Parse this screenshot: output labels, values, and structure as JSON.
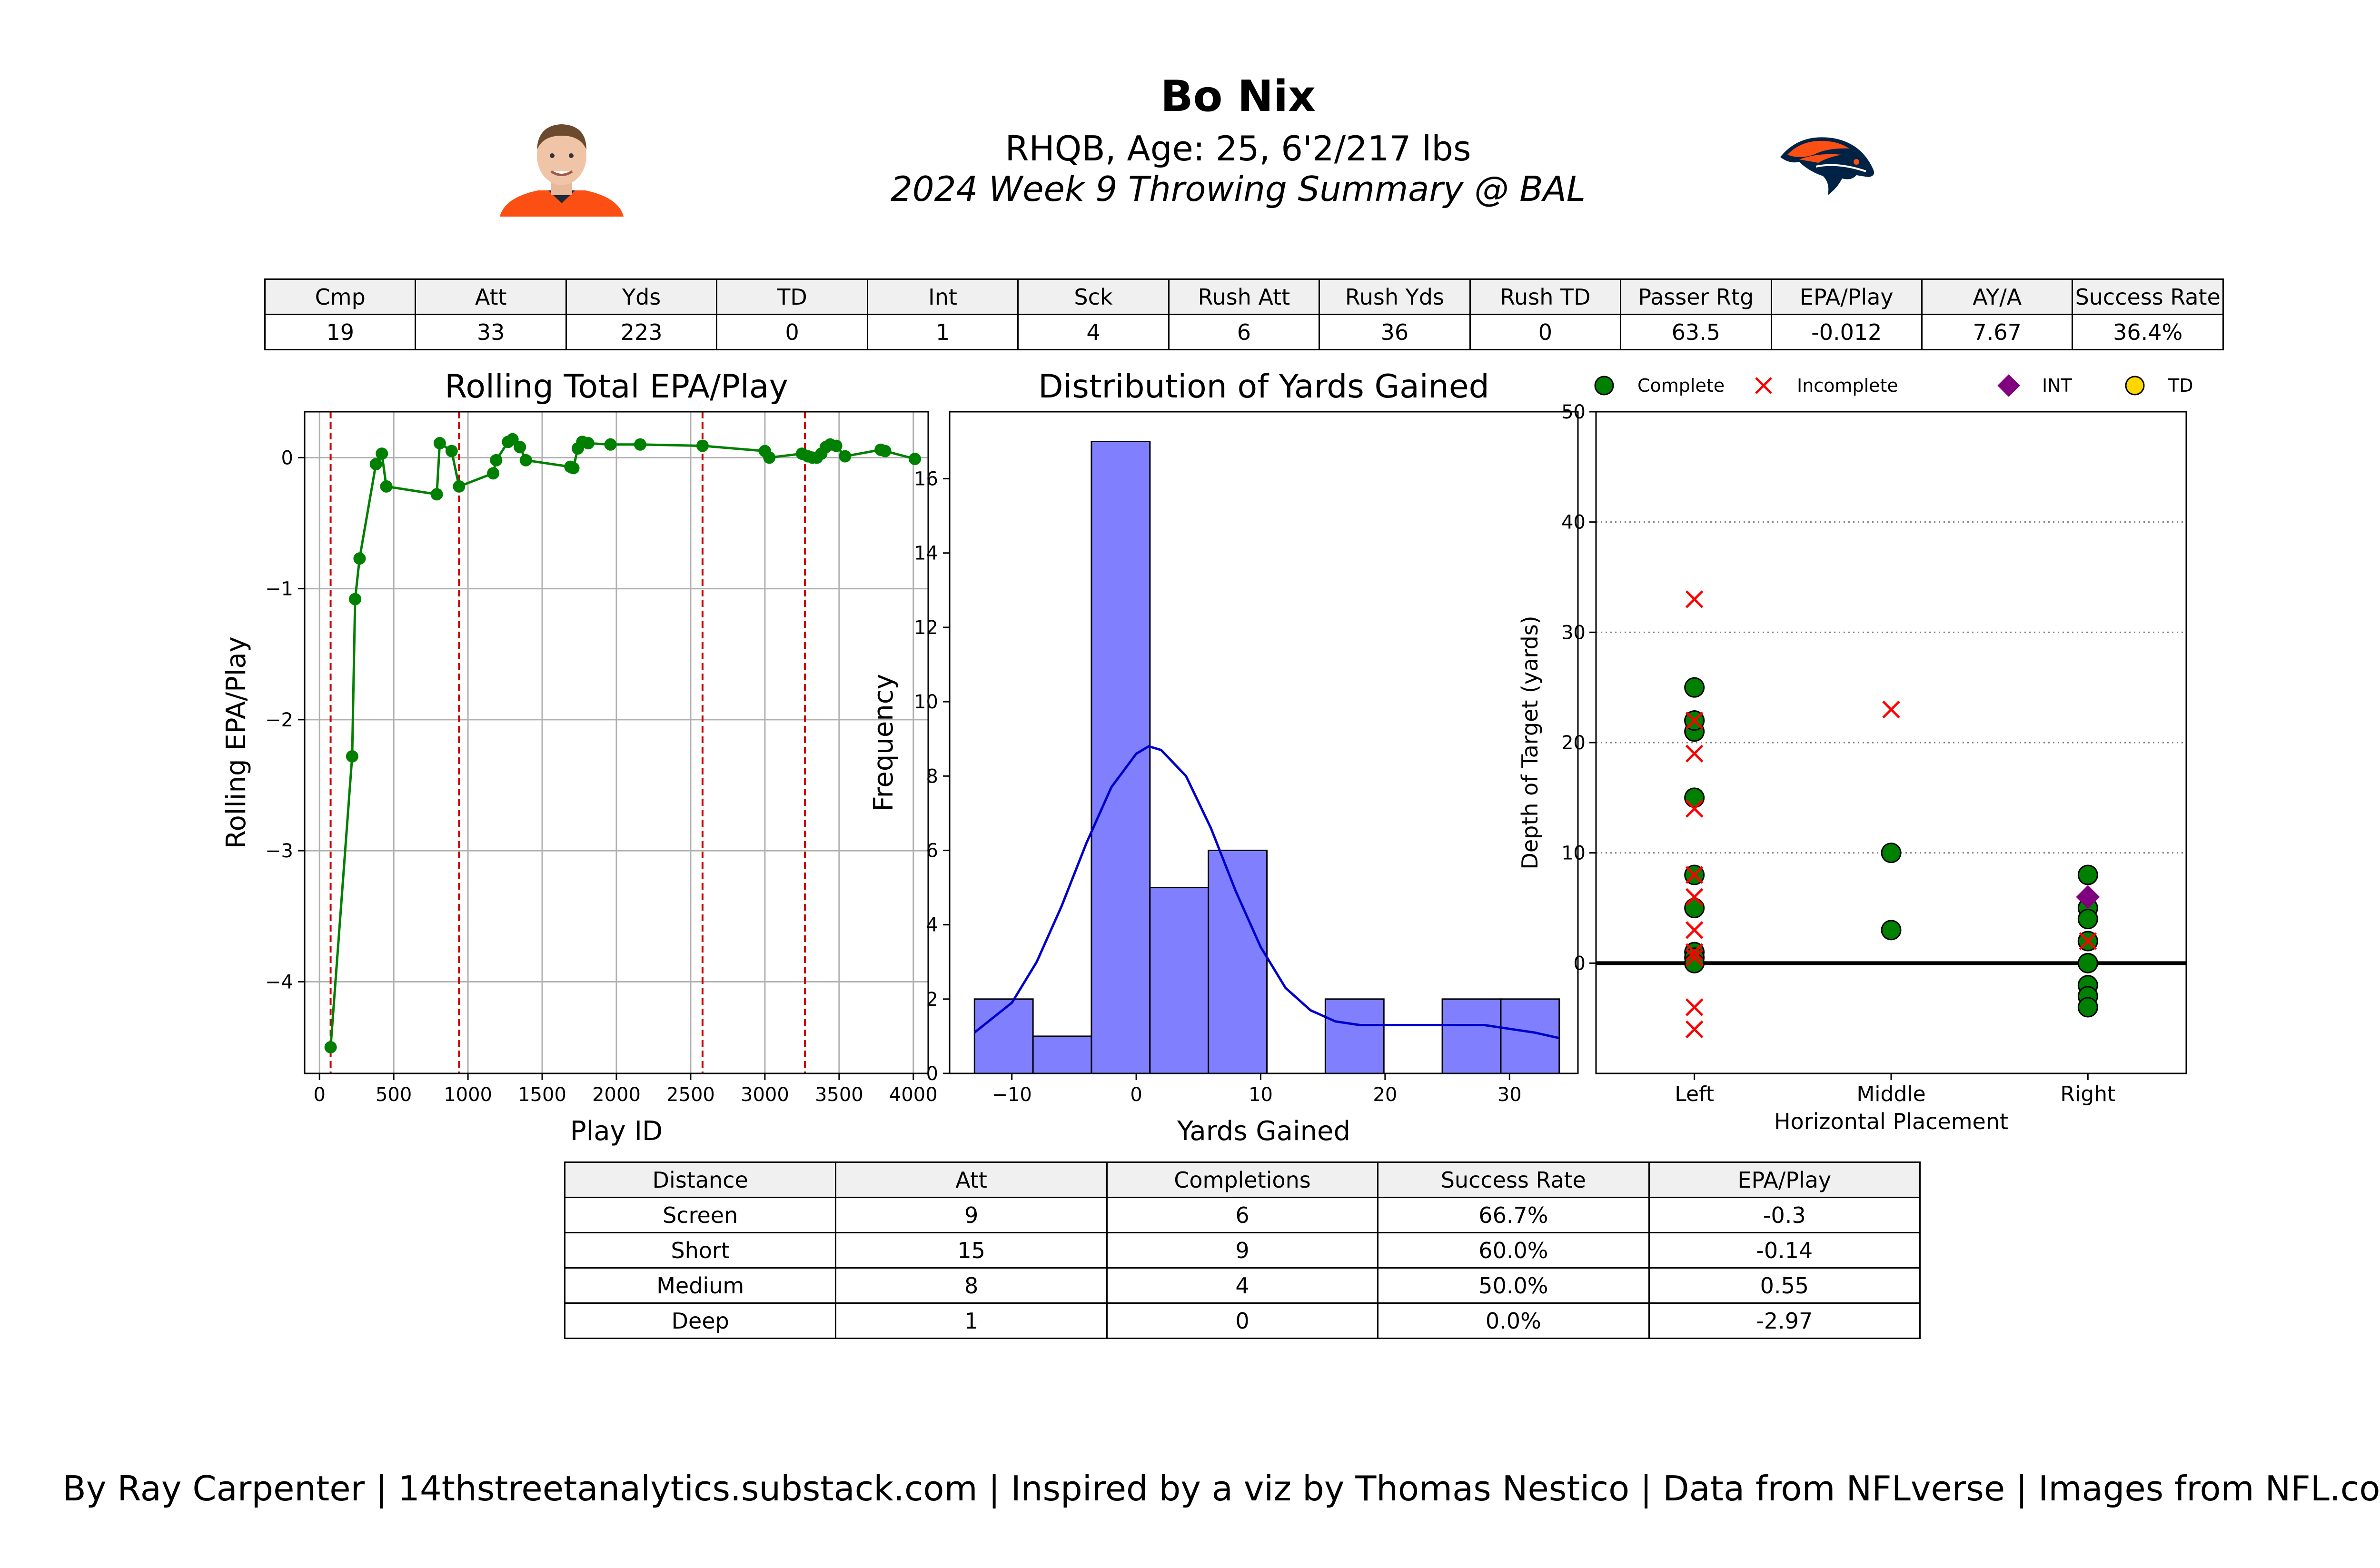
{
  "header": {
    "player_name": "Bo Nix",
    "player_info": "RHQB, Age: 25, 6'2/217 lbs",
    "game_summary": "2024 Week 9 Throwing Summary @ BAL",
    "headshot_icon": "player-headshot-icon",
    "logo_icon": "broncos-logo-icon",
    "team_colors": {
      "orange": "#fb4f14",
      "navy": "#002244"
    }
  },
  "summary_table": {
    "headers": [
      "Cmp",
      "Att",
      "Yds",
      "TD",
      "Int",
      "Sck",
      "Rush Att",
      "Rush Yds",
      "Rush TD",
      "Passer Rtg",
      "EPA/Play",
      "AY/A",
      "Success Rate"
    ],
    "rows": [
      [
        "19",
        "33",
        "223",
        "0",
        "1",
        "4",
        "6",
        "36",
        "0",
        "63.5",
        "-0.012",
        "7.67",
        "36.4%"
      ]
    ]
  },
  "distance_table": {
    "headers": [
      "Distance",
      "Att",
      "Completions",
      "Success Rate",
      "EPA/Play"
    ],
    "rows": [
      [
        "Screen",
        "9",
        "6",
        "66.7%",
        "-0.3"
      ],
      [
        "Short",
        "15",
        "9",
        "60.0%",
        "-0.14"
      ],
      [
        "Medium",
        "8",
        "4",
        "50.0%",
        "0.55"
      ],
      [
        "Deep",
        "1",
        "0",
        "0.0%",
        "-2.97"
      ]
    ]
  },
  "credit": "By Ray Carpenter | 14thstreetanalytics.substack.com | Inspired by a viz by Thomas Nestico | Data from NFLverse | Images from NFL.com",
  "chart_data": [
    {
      "type": "line",
      "title": "Rolling Total EPA/Play",
      "xlabel": "Play ID",
      "ylabel": "Rolling EPA/Play",
      "xlim": [
        -100,
        4100
      ],
      "ylim": [
        -4.7,
        0.35
      ],
      "xticks": [
        0,
        500,
        1000,
        1500,
        2000,
        2500,
        3000,
        3500,
        4000
      ],
      "yticks": [
        -4,
        -3,
        -2,
        -1,
        0
      ],
      "ytick_labels": [
        "−4",
        "−3",
        "−2",
        "−1",
        "0"
      ],
      "grid": true,
      "color": "#008000",
      "vline_color": "#cc0000",
      "vlines": [
        75,
        940,
        2580,
        3270
      ],
      "x": [
        75,
        220,
        240,
        270,
        380,
        420,
        450,
        790,
        810,
        890,
        940,
        1170,
        1190,
        1270,
        1300,
        1350,
        1390,
        1690,
        1710,
        1740,
        1770,
        1810,
        1960,
        2160,
        2580,
        3000,
        3030,
        3250,
        3290,
        3320,
        3350,
        3380,
        3410,
        3440,
        3480,
        3540,
        3780,
        3810,
        4010
      ],
      "y": [
        -4.5,
        -2.28,
        -1.08,
        -0.77,
        -0.05,
        0.03,
        -0.22,
        -0.28,
        0.11,
        0.05,
        -0.22,
        -0.12,
        -0.02,
        0.12,
        0.14,
        0.08,
        -0.02,
        -0.07,
        -0.08,
        0.07,
        0.12,
        0.11,
        0.1,
        0.1,
        0.09,
        0.05,
        0.0,
        0.03,
        0.01,
        0.0,
        0.0,
        0.03,
        0.08,
        0.1,
        0.09,
        0.01,
        0.06,
        0.05,
        -0.01
      ]
    },
    {
      "type": "bar",
      "title": "Distribution of Yards Gained",
      "xlabel": "Yards Gained",
      "ylabel": "Frequency",
      "xlim": [
        -15,
        35.5
      ],
      "ylim": [
        0,
        17.8
      ],
      "xticks": [
        -10,
        0,
        10,
        20,
        30
      ],
      "xtick_labels": [
        "−10",
        "0",
        "10",
        "20",
        "30"
      ],
      "yticks": [
        0,
        2,
        4,
        6,
        8,
        10,
        12,
        14,
        16
      ],
      "bar_color": "#8080ff",
      "kde_color": "#0000cc",
      "bin_edges": [
        -13,
        -8.3,
        -3.6,
        1.1,
        5.8,
        10.5,
        15.2,
        19.9,
        24.6,
        29.3,
        34
      ],
      "values": [
        2,
        1,
        17,
        5,
        6,
        0,
        2,
        0,
        2,
        2
      ],
      "kde_x": [
        -13,
        -10,
        -8,
        -6,
        -4,
        -2,
        0,
        1,
        2,
        4,
        6,
        8,
        10,
        12,
        14,
        16,
        18,
        20,
        22,
        24,
        26,
        28,
        30,
        32,
        34
      ],
      "kde_y": [
        1.1,
        1.9,
        3.0,
        4.5,
        6.2,
        7.7,
        8.6,
        8.8,
        8.7,
        8.0,
        6.6,
        4.9,
        3.4,
        2.3,
        1.7,
        1.4,
        1.3,
        1.3,
        1.3,
        1.3,
        1.3,
        1.3,
        1.2,
        1.1,
        0.95
      ]
    },
    {
      "type": "scatter",
      "xlabel": "Horizontal Placement",
      "ylabel": "Depth of Target (yards)",
      "categories": [
        "Left",
        "Middle",
        "Right"
      ],
      "xlim": [
        -0.5,
        2.5
      ],
      "ylim": [
        -10,
        50
      ],
      "yticks": [
        0,
        10,
        20,
        30,
        40,
        50
      ],
      "grid": "y-dotted",
      "zero_line": true,
      "legend_placement": "top",
      "legend": [
        {
          "label": "Complete",
          "color": "#008000",
          "marker": "circle"
        },
        {
          "label": "Incomplete",
          "color": "#ff0000",
          "marker": "x"
        },
        {
          "label": "INT",
          "color": "#800080",
          "marker": "diamond"
        },
        {
          "label": "TD",
          "color": "#ffd700",
          "marker": "circle"
        }
      ],
      "series": [
        {
          "name": "Complete",
          "x": [
            0,
            0,
            0,
            0,
            0,
            0,
            0,
            0,
            0,
            0,
            1,
            1,
            2,
            2,
            2,
            2,
            2,
            2,
            2,
            2,
            2
          ],
          "y": [
            25,
            22,
            21,
            15,
            8,
            5,
            1,
            0.5,
            0,
            22,
            10,
            3,
            8,
            5,
            4,
            2,
            0,
            -2,
            -3,
            -4,
            2
          ]
        },
        {
          "name": "Incomplete",
          "x": [
            0,
            0,
            0,
            0,
            0,
            0,
            0,
            0,
            0,
            0,
            0,
            1,
            2
          ],
          "y": [
            33,
            22,
            19,
            14,
            8,
            6,
            3,
            1,
            0.5,
            -4,
            -6,
            23,
            2
          ]
        },
        {
          "name": "INT",
          "x": [
            2
          ],
          "y": [
            6
          ]
        },
        {
          "name": "TD",
          "x": [],
          "y": []
        }
      ]
    }
  ]
}
